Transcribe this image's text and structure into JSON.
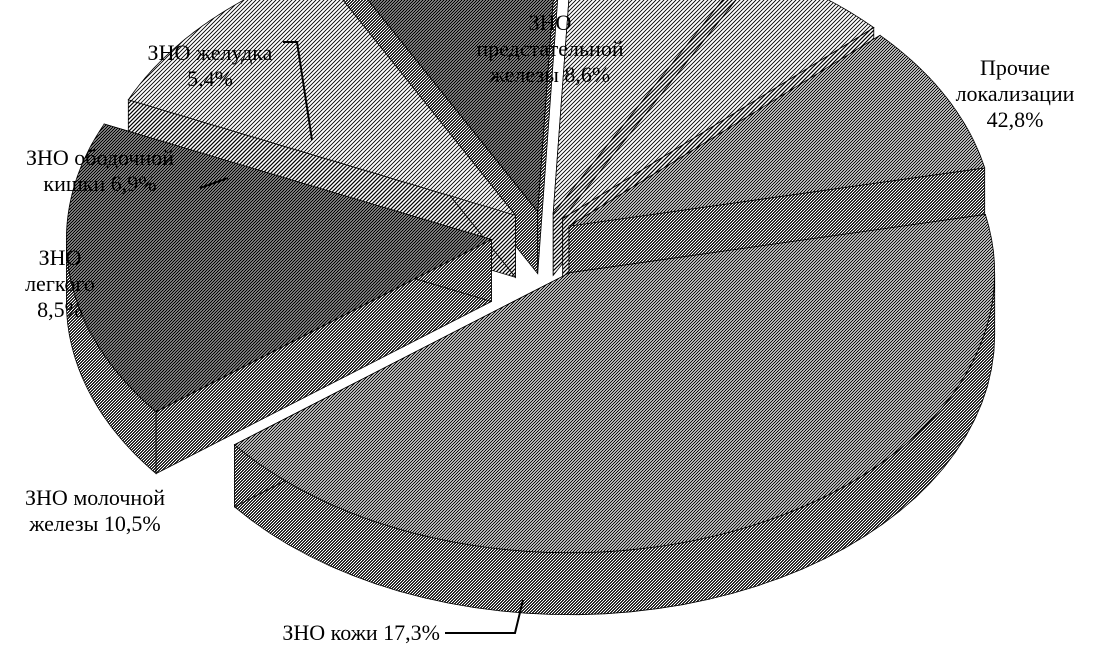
{
  "chart_data": {
    "type": "pie",
    "title": "",
    "style": "3d-exploded",
    "slices": [
      {
        "lines": [
          "Прочие",
          "локализации",
          "42,8%"
        ],
        "value": 42.8,
        "pattern": "diag-medium"
      },
      {
        "lines": [
          "ЗНО кожи 17,3%"
        ],
        "value": 17.3,
        "pattern": "diag-dense"
      },
      {
        "lines": [
          "ЗНО молочной",
          "железы 10,5%"
        ],
        "value": 10.5,
        "pattern": "diag-light"
      },
      {
        "lines": [
          "ЗНО",
          "легкого",
          "8,5%"
        ],
        "value": 8.5,
        "pattern": "diag-dense"
      },
      {
        "lines": [
          "ЗНО ободочной",
          "кишки 6,9%"
        ],
        "value": 6.9,
        "pattern": "diag-light"
      },
      {
        "lines": [
          "ЗНО желудка",
          "5,4%"
        ],
        "value": 5.4,
        "pattern": "diag-light"
      },
      {
        "lines": [
          "ЗНО",
          "предстательной",
          "железы 8,6%"
        ],
        "value": 8.6,
        "pattern": "diag-medium"
      }
    ],
    "colors": {
      "ink": "#000000",
      "paper": "#ffffff"
    }
  }
}
